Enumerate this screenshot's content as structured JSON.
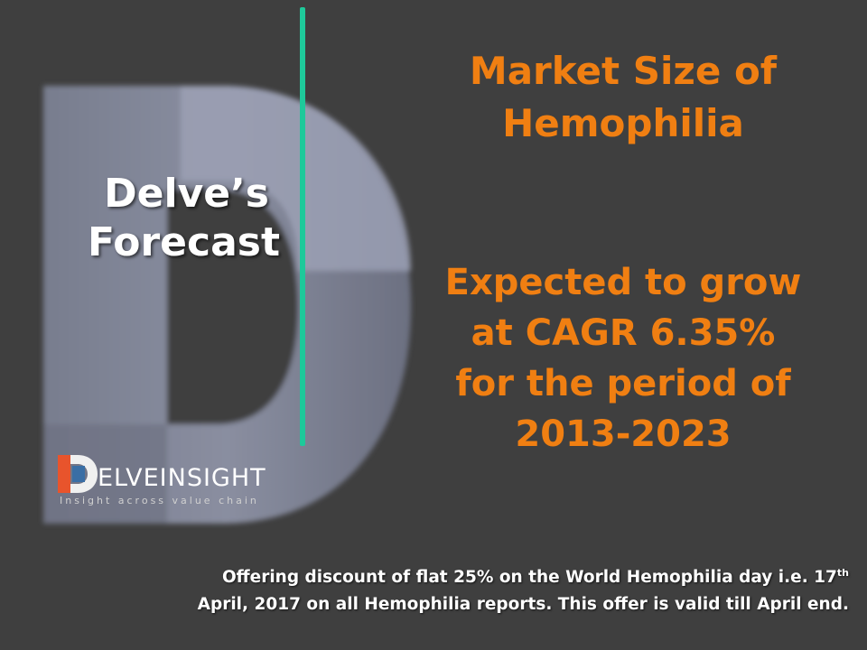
{
  "slide": {
    "background_color": "#3f3f3f",
    "accent_color": "#f07f12",
    "divider_color": "#1ec99a"
  },
  "left_panel": {
    "line1": "Delve’s",
    "line2": "Forecast"
  },
  "title": {
    "line1": "Market Size of",
    "line2": "Hemophilia"
  },
  "growth": {
    "line1": "Expected to grow",
    "line2": "at CAGR 6.35%",
    "line3": "for the period of",
    "line4": "2013-2023"
  },
  "logo": {
    "wordmark": "ELVEINSIGHT",
    "tagline": "Insight across value chain",
    "icon": "delveinsight-d-logo-icon"
  },
  "offer": {
    "line1_pre": "Offering discount of flat  25%  on the World Hemophilia day i.e. 17",
    "line1_sup": "th",
    "line2": "April, 2017 on all Hemophilia reports. This offer is valid till April end."
  }
}
